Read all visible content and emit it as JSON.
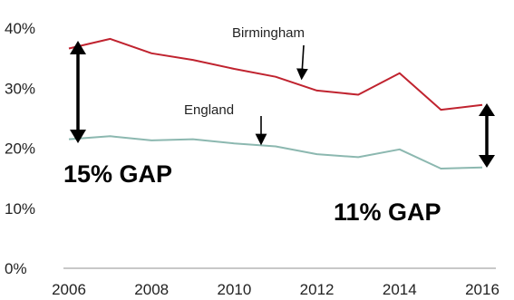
{
  "chart_data": {
    "type": "line",
    "x": [
      2006,
      2007,
      2008,
      2009,
      2010,
      2011,
      2012,
      2013,
      2014,
      2015,
      2016
    ],
    "xticks": [
      "2006",
      "2008",
      "2010",
      "2012",
      "2014",
      "2016"
    ],
    "yticks": [
      "0%",
      "10%",
      "20%",
      "30%",
      "40%"
    ],
    "ylim": [
      0,
      40
    ],
    "xlim": [
      2006,
      2016
    ],
    "grid": false,
    "series": [
      {
        "name": "Birmingham",
        "color": "#c0232f",
        "values": [
          36.6,
          38.2,
          35.8,
          34.7,
          33.2,
          31.9,
          29.6,
          28.9,
          32.5,
          26.4,
          27.2
        ]
      },
      {
        "name": "England",
        "color": "#8cb8b0",
        "values": [
          21.5,
          22.0,
          21.3,
          21.5,
          20.8,
          20.3,
          19.0,
          18.5,
          19.8,
          16.6,
          16.8
        ]
      }
    ],
    "annotations": {
      "gap_start": "15% GAP",
      "gap_end": "11% GAP"
    }
  }
}
